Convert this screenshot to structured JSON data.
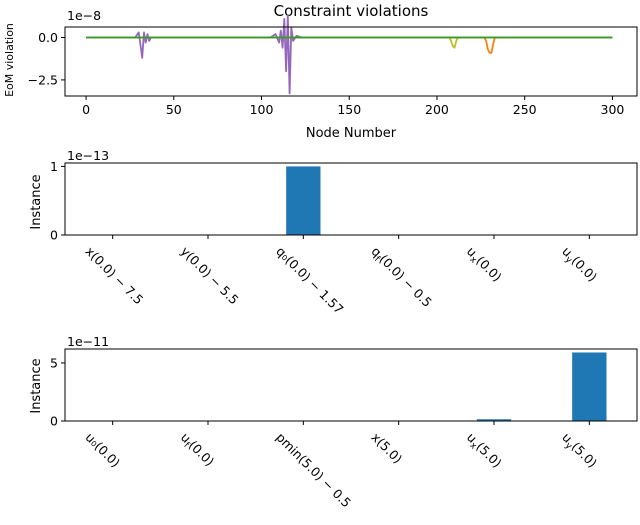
{
  "chart_data": [
    {
      "type": "line",
      "title": "Constraint violations",
      "xlabel": "Node Number",
      "ylabel": "EoM violation",
      "offset_label": "1e−8",
      "xlim": [
        -12,
        314
      ],
      "ylim": [
        -3.45,
        0.62
      ],
      "xticks": [
        0,
        50,
        100,
        150,
        200,
        250,
        300
      ],
      "yticks": [
        0.0,
        -2.5
      ],
      "ytick_labels": [
        "0.0",
        "−2.5"
      ],
      "grid": false,
      "series": [
        {
          "color": "#9467bd",
          "x": [
            0,
            28,
            30,
            31,
            32,
            33,
            34,
            35,
            36,
            37,
            40,
            105,
            108,
            110,
            111,
            112,
            113,
            114,
            115,
            116,
            117,
            118,
            120,
            123,
            300
          ],
          "y": [
            0.0,
            0.0,
            0.3,
            -0.4,
            -1.2,
            0.3,
            -0.3,
            0.2,
            -0.2,
            0.0,
            0.0,
            0.0,
            0.2,
            -0.3,
            0.4,
            -0.6,
            1.1,
            -2.0,
            1.3,
            -3.3,
            0.6,
            -0.2,
            0.1,
            0.0,
            0.0
          ]
        },
        {
          "color": "#bcbd22",
          "x": [
            0,
            207,
            208,
            209,
            210,
            211,
            212,
            300
          ],
          "y": [
            0.0,
            0.0,
            -0.2,
            -0.5,
            -0.6,
            -0.2,
            0.0,
            0.0
          ]
        },
        {
          "color": "#ff7f0e",
          "x": [
            0,
            227,
            228,
            229,
            230,
            231,
            232,
            233,
            300
          ],
          "y": [
            0.0,
            0.0,
            -0.2,
            -0.7,
            -0.9,
            -0.9,
            -0.4,
            0.0,
            0.0
          ]
        },
        {
          "color": "#2ca02c",
          "x": [
            0,
            300
          ],
          "y": [
            0.0,
            0.0
          ]
        }
      ]
    },
    {
      "type": "bar",
      "ylabel": "Instance",
      "offset_label": "1e−13",
      "categories": [
        "x(0.0) − 7.5",
        "y(0.0) − 5.5",
        "q₀(0.0) − 1.57",
        "q_f(0.0) − 0.5",
        "u_x(0.0)",
        "u_y(0.0)"
      ],
      "values": [
        0,
        0,
        1.0,
        0,
        0,
        0
      ],
      "ylim": [
        0,
        1.05
      ],
      "yticks": [
        0,
        1
      ],
      "color": "#1f77b4",
      "grid": false
    },
    {
      "type": "bar",
      "ylabel": "Instance",
      "offset_label": "1e−11",
      "categories": [
        "u₀(0.0)",
        "u_f(0.0)",
        "pmin(5.0) − 0.5",
        "x(5.0)",
        "u_x(5.0)",
        "u_y(5.0)"
      ],
      "values": [
        0,
        0,
        0,
        0,
        0.15,
        5.9
      ],
      "ylim": [
        0,
        6.2
      ],
      "yticks": [
        0,
        5
      ],
      "color": "#1f77b4",
      "grid": false
    }
  ]
}
